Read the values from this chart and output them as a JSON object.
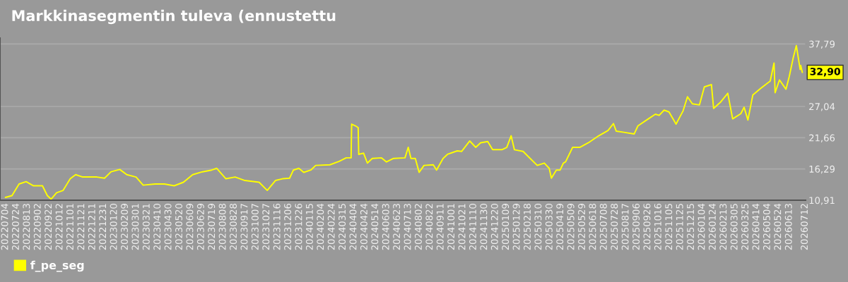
{
  "chart_data": {
    "type": "line",
    "title": "Markkinasegmentin tuleva (ennustettu",
    "x": [
      "2022-07-04",
      "2022-07-16",
      "2022-07-29",
      "2022-08-11",
      "2022-08-24",
      "2022-09-10",
      "2022-09-19",
      "2022-09-26",
      "2022-10-06",
      "2022-10-18",
      "2022-10-31",
      "2022-11-10",
      "2022-11-23",
      "2022-12-19",
      "2023-01-02",
      "2023-01-14",
      "2023-01-30",
      "2023-02-12",
      "2023-03-01",
      "2023-03-14",
      "2023-04-05",
      "2023-04-22",
      "2023-05-10",
      "2023-05-27",
      "2023-06-13",
      "2023-07-01",
      "2023-07-18",
      "2023-07-27",
      "2023-08-13",
      "2023-08-30",
      "2023-09-17",
      "2023-10-13",
      "2023-10-28",
      "2023-11-12",
      "2023-11-25",
      "2023-12-08",
      "2023-12-15",
      "2023-12-25",
      "2024-01-03",
      "2024-01-16",
      "2024-01-25",
      "2024-02-20",
      "2024-03-08",
      "2024-03-21",
      "2024-03-30",
      "2024-03-31",
      "2024-04-07",
      "2024-04-12",
      "2024-04-13",
      "2024-04-22",
      "2024-04-29",
      "2024-05-08",
      "2024-05-25",
      "2024-06-03",
      "2024-06-16",
      "2024-07-07",
      "2024-07-13",
      "2024-07-18",
      "2024-07-26",
      "2024-08-02",
      "2024-08-11",
      "2024-08-28",
      "2024-09-03",
      "2024-09-15",
      "2024-09-23",
      "2024-10-11",
      "2024-10-19",
      "2024-11-03",
      "2024-11-14",
      "2024-11-23",
      "2024-12-06",
      "2024-12-15",
      "2025-01-01",
      "2025-01-10",
      "2025-01-18",
      "2025-01-24",
      "2025-02-09",
      "2025-02-22",
      "2025-03-07",
      "2025-03-20",
      "2025-03-29",
      "2025-04-02",
      "2025-04-11",
      "2025-04-18",
      "2025-04-24",
      "2025-04-28",
      "2025-05-11",
      "2025-05-24",
      "2025-06-09",
      "2025-06-28",
      "2025-07-15",
      "2025-07-25",
      "2025-07-30",
      "2025-08-13",
      "2025-09-01",
      "2025-09-08",
      "2025-09-27",
      "2025-10-10",
      "2025-10-17",
      "2025-10-26",
      "2025-11-04",
      "2025-11-17",
      "2025-11-30",
      "2025-12-08",
      "2025-12-17",
      "2025-12-30",
      "2026-01-08",
      "2026-01-21",
      "2026-01-25",
      "2026-02-07",
      "2026-02-20",
      "2026-03-01",
      "2026-03-16",
      "2026-03-22",
      "2026-03-29",
      "2026-04-07",
      "2026-04-22",
      "2026-05-09",
      "2026-05-16",
      "2026-05-18",
      "2026-05-26",
      "2026-06-07",
      "2026-06-13",
      "2026-06-20",
      "2026-06-26",
      "2026-07-03",
      "2026-07-04",
      "2026-07-07"
    ],
    "series": [
      {
        "name": "f_pe_seg",
        "color": "#ffff00",
        "values": [
          11.4,
          11.7,
          13.7,
          14.1,
          13.4,
          13.4,
          11.7,
          11.1,
          12.2,
          12.6,
          14.6,
          15.3,
          14.9,
          14.9,
          14.7,
          15.8,
          16.2,
          15.3,
          14.9,
          13.5,
          13.7,
          13.7,
          13.4,
          14.0,
          15.3,
          15.8,
          16.1,
          16.4,
          14.6,
          14.9,
          14.3,
          14.0,
          12.6,
          14.3,
          14.6,
          14.7,
          16.1,
          16.4,
          15.7,
          16.1,
          16.9,
          17.0,
          17.6,
          18.2,
          18.2,
          24.0,
          23.7,
          23.4,
          18.8,
          19.0,
          17.3,
          18.1,
          18.2,
          17.5,
          18.1,
          18.2,
          20.0,
          18.1,
          18.1,
          15.7,
          16.9,
          17.0,
          16.1,
          18.1,
          18.8,
          19.4,
          19.3,
          21.1,
          20.0,
          20.8,
          21.0,
          19.6,
          19.6,
          20.0,
          22.0,
          19.6,
          19.3,
          18.1,
          16.9,
          17.3,
          16.4,
          14.7,
          16.1,
          16.1,
          17.3,
          17.5,
          20.0,
          20.0,
          20.8,
          22.0,
          22.9,
          24.1,
          22.8,
          22.6,
          22.3,
          23.7,
          24.9,
          25.7,
          25.5,
          26.4,
          26.1,
          24.0,
          26.3,
          28.7,
          27.5,
          27.3,
          30.4,
          30.8,
          26.7,
          27.8,
          29.3,
          24.9,
          25.8,
          26.9,
          24.7,
          29.0,
          30.2,
          31.4,
          34.5,
          29.4,
          31.6,
          30.0,
          32.2,
          35.3,
          37.5,
          33.4,
          34.1,
          32.9
        ]
      }
    ],
    "annotations": [
      {
        "text": "32,90",
        "x": "2026-07-07",
        "y": 32.9
      }
    ],
    "xlim": [
      "2022-06-24",
      "2026-07-13"
    ],
    "xticks": [
      {
        "value": "2022-07-04",
        "label": "20220704"
      },
      {
        "value": "2022-07-24",
        "label": "20220724"
      },
      {
        "value": "2022-08-13",
        "label": "20220813"
      },
      {
        "value": "2022-09-02",
        "label": "20220902"
      },
      {
        "value": "2022-09-22",
        "label": "20220922"
      },
      {
        "value": "2022-10-12",
        "label": "20221012"
      },
      {
        "value": "2022-11-01",
        "label": "20221101"
      },
      {
        "value": "2022-11-21",
        "label": "20221121"
      },
      {
        "value": "2022-12-11",
        "label": "20221211"
      },
      {
        "value": "2022-12-31",
        "label": "20221231"
      },
      {
        "value": "2023-01-20",
        "label": "20230120"
      },
      {
        "value": "2023-02-09",
        "label": "20230209"
      },
      {
        "value": "2023-03-01",
        "label": "20230301"
      },
      {
        "value": "2023-03-21",
        "label": "20230321"
      },
      {
        "value": "2023-04-10",
        "label": "20230410"
      },
      {
        "value": "2023-04-30",
        "label": "20230430"
      },
      {
        "value": "2023-05-20",
        "label": "20230520"
      },
      {
        "value": "2023-06-09",
        "label": "20230609"
      },
      {
        "value": "2023-06-29",
        "label": "20230629"
      },
      {
        "value": "2023-07-19",
        "label": "20230719"
      },
      {
        "value": "2023-08-08",
        "label": "20230808"
      },
      {
        "value": "2023-08-28",
        "label": "20230828"
      },
      {
        "value": "2023-09-17",
        "label": "20230917"
      },
      {
        "value": "2023-10-07",
        "label": "20231007"
      },
      {
        "value": "2023-10-27",
        "label": "20231027"
      },
      {
        "value": "2023-11-16",
        "label": "20231116"
      },
      {
        "value": "2023-12-06",
        "label": "20231206"
      },
      {
        "value": "2023-12-26",
        "label": "20231226"
      },
      {
        "value": "2024-01-15",
        "label": "20240115"
      },
      {
        "value": "2024-02-04",
        "label": "20240204"
      },
      {
        "value": "2024-02-24",
        "label": "20240224"
      },
      {
        "value": "2024-03-15",
        "label": "20240315"
      },
      {
        "value": "2024-04-04",
        "label": "20240404"
      },
      {
        "value": "2024-04-24",
        "label": "20240424"
      },
      {
        "value": "2024-05-14",
        "label": "20240514"
      },
      {
        "value": "2024-06-03",
        "label": "20240603"
      },
      {
        "value": "2024-06-23",
        "label": "20240623"
      },
      {
        "value": "2024-07-13",
        "label": "20240713"
      },
      {
        "value": "2024-08-02",
        "label": "20240802"
      },
      {
        "value": "2024-08-22",
        "label": "20240822"
      },
      {
        "value": "2024-09-11",
        "label": "20240911"
      },
      {
        "value": "2024-10-01",
        "label": "20241001"
      },
      {
        "value": "2024-10-21",
        "label": "20241021"
      },
      {
        "value": "2024-11-10",
        "label": "20241110"
      },
      {
        "value": "2024-11-30",
        "label": "20241130"
      },
      {
        "value": "2024-12-20",
        "label": "20241220"
      },
      {
        "value": "2025-01-09",
        "label": "20250109"
      },
      {
        "value": "2025-01-29",
        "label": "20250129"
      },
      {
        "value": "2025-02-18",
        "label": "20250218"
      },
      {
        "value": "2025-03-10",
        "label": "20250310"
      },
      {
        "value": "2025-03-30",
        "label": "20250330"
      },
      {
        "value": "2025-04-19",
        "label": "20250419"
      },
      {
        "value": "2025-05-09",
        "label": "20250509"
      },
      {
        "value": "2025-05-29",
        "label": "20250529"
      },
      {
        "value": "2025-06-18",
        "label": "20250618"
      },
      {
        "value": "2025-07-08",
        "label": "20250708"
      },
      {
        "value": "2025-07-28",
        "label": "20250728"
      },
      {
        "value": "2025-08-17",
        "label": "20250817"
      },
      {
        "value": "2025-09-06",
        "label": "20250906"
      },
      {
        "value": "2025-09-26",
        "label": "20250926"
      },
      {
        "value": "2025-10-16",
        "label": "20251016"
      },
      {
        "value": "2025-11-05",
        "label": "20251105"
      },
      {
        "value": "2025-11-25",
        "label": "20251125"
      },
      {
        "value": "2025-12-15",
        "label": "20251215"
      },
      {
        "value": "2026-01-04",
        "label": "20260104"
      },
      {
        "value": "2026-01-24",
        "label": "20260124"
      },
      {
        "value": "2026-02-13",
        "label": "20260213"
      },
      {
        "value": "2026-03-05",
        "label": "20260305"
      },
      {
        "value": "2026-03-25",
        "label": "20260325"
      },
      {
        "value": "2026-04-14",
        "label": "20260414"
      },
      {
        "value": "2026-05-04",
        "label": "20260504"
      },
      {
        "value": "2026-05-24",
        "label": "20260524"
      },
      {
        "value": "2026-06-13",
        "label": "20260613"
      },
      {
        "value": "2026-07-12",
        "label": "20260712"
      }
    ],
    "ylim": [
      10.91,
      38.8
    ],
    "yticks": [
      {
        "value": 10.91,
        "label": "10,91"
      },
      {
        "value": 16.29,
        "label": "16,29"
      },
      {
        "value": 21.66,
        "label": "21,66"
      },
      {
        "value": 27.04,
        "label": "27,04"
      },
      {
        "value": 37.79,
        "label": "37,79"
      }
    ],
    "grid": "y",
    "legend": "bottom left",
    "marker": "none",
    "line_style": "solid"
  }
}
